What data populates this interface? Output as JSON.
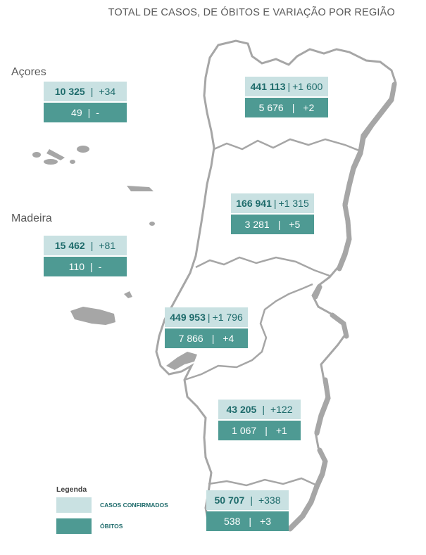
{
  "title": "TOTAL DE CASOS, DE ÓBITOS E VARIAÇÃO POR REGIÃO",
  "colors": {
    "cases_bg": "#c9e1e2",
    "deaths_bg": "#4e9a93",
    "map_outline": "#a6a6a6",
    "islands": "#a6a6a6"
  },
  "islands": [
    {
      "label": "Açores",
      "cases": "10 325",
      "cases_var": "+34",
      "deaths": "49",
      "deaths_var": "-"
    },
    {
      "label": "Madeira",
      "cases": "15 462",
      "cases_var": "+81",
      "deaths": "110",
      "deaths_var": "-"
    }
  ],
  "regions": [
    {
      "cases": "441 113",
      "cases_var": "+1 600",
      "deaths": "5 676",
      "deaths_var": "+2"
    },
    {
      "cases": "166 941",
      "cases_var": "+1 315",
      "deaths": "3 281",
      "deaths_var": "+5"
    },
    {
      "cases": "449 953",
      "cases_var": "+1 796",
      "deaths": "7 866",
      "deaths_var": "+4"
    },
    {
      "cases": "43 205",
      "cases_var": "+122",
      "deaths": "1 067",
      "deaths_var": "+1"
    },
    {
      "cases": "50 707",
      "cases_var": "+338",
      "deaths": "538",
      "deaths_var": "+3"
    }
  ],
  "legend": {
    "title": "Legenda",
    "cases_label": "CASOS CONFIRMADOS",
    "deaths_label": "ÓBITOS"
  }
}
